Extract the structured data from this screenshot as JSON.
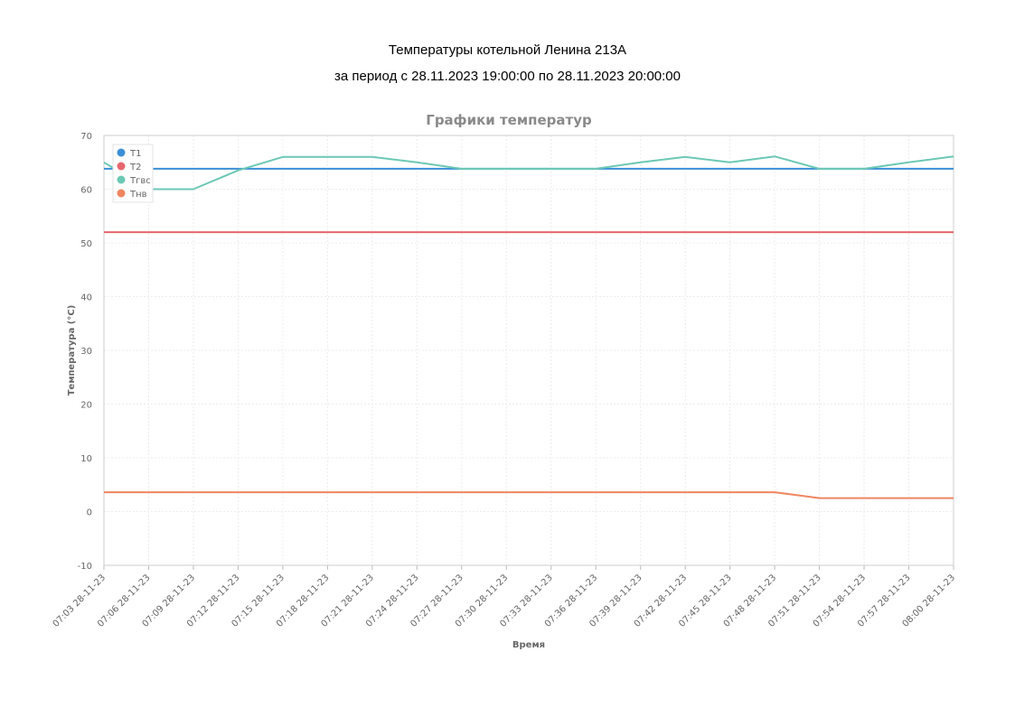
{
  "header": {
    "title": "Температуры котельной Ленина 213А",
    "period": "за период с 28.11.2023 19:00:00 по 28.11.2023 20:00:00"
  },
  "chart_data": {
    "type": "line",
    "title": "Графики температур",
    "xlabel": "Время",
    "ylabel": "Температура (°C)",
    "ylim": [
      -10,
      70
    ],
    "yticks": [
      -10,
      0,
      10,
      20,
      30,
      40,
      50,
      60,
      70
    ],
    "grid": true,
    "legend_position": "top-left",
    "x": [
      "07:03 28-11-23",
      "07:06 28-11-23",
      "07:09 28-11-23",
      "07:12 28-11-23",
      "07:15 28-11-23",
      "07:18 28-11-23",
      "07:21 28-11-23",
      "07:24 28-11-23",
      "07:27 28-11-23",
      "07:30 28-11-23",
      "07:33 28-11-23",
      "07:36 28-11-23",
      "07:39 28-11-23",
      "07:42 28-11-23",
      "07:45 28-11-23",
      "07:48 28-11-23",
      "07:51 28-11-23",
      "07:54 28-11-23",
      "07:57 28-11-23",
      "08:00 28-11-23"
    ],
    "series": [
      {
        "name": "T1",
        "color": "#3b8fd6",
        "values": [
          63.8,
          63.8,
          63.8,
          63.8,
          63.8,
          63.8,
          63.8,
          63.8,
          63.8,
          63.8,
          63.8,
          63.8,
          63.8,
          63.8,
          63.8,
          63.8,
          63.8,
          63.8,
          63.8,
          63.8
        ]
      },
      {
        "name": "T2",
        "color": "#e8666e",
        "values": [
          52,
          52,
          52,
          52,
          52,
          52,
          52,
          52,
          52,
          52,
          52,
          52,
          52,
          52,
          52,
          52,
          52,
          52,
          52,
          52
        ]
      },
      {
        "name": "Tгвс",
        "color": "#6cc8b4",
        "values": [
          65,
          60,
          60,
          63.5,
          66,
          66,
          66,
          65,
          63.8,
          63.8,
          63.8,
          63.8,
          65,
          66,
          65,
          66.1,
          63.8,
          63.8,
          65,
          66.1
        ]
      },
      {
        "name": "Tнв",
        "color": "#ef8560",
        "values": [
          3.6,
          3.6,
          3.6,
          3.6,
          3.6,
          3.6,
          3.6,
          3.6,
          3.6,
          3.6,
          3.6,
          3.6,
          3.6,
          3.6,
          3.6,
          3.6,
          2.5,
          2.5,
          2.5,
          2.5
        ]
      }
    ]
  }
}
